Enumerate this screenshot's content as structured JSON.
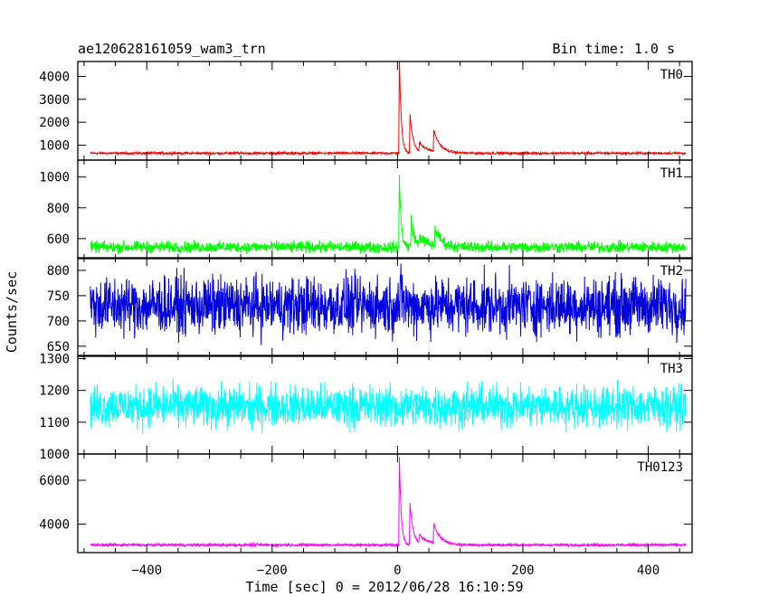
{
  "chart_data": {
    "type": "line",
    "title": "ae120628161059_wam3_trn",
    "bin_time_label": "Bin time: 1.0 s",
    "ylabel": "Counts/sec",
    "xlabel": "Time [sec] 0 = 2012/06/28 16:10:59",
    "xlim": [
      -510,
      470
    ],
    "x_ticks": [
      -400,
      -200,
      0,
      200,
      400
    ],
    "x_tick_labels": [
      "−400",
      "−200",
      "0",
      "200",
      "400"
    ],
    "panels": [
      {
        "name": "TH0",
        "color": "#ff0000",
        "ylim": [
          350,
          4650
        ],
        "y_ticks": [
          1000,
          2000,
          3000,
          4000
        ],
        "y_tick_labels": [
          "1000",
          "2000",
          "3000",
          "4000"
        ],
        "baseline": 650,
        "noise": 25,
        "x_start": -490,
        "x_end": 460,
        "peaks": [
          [
            3,
            4200,
            3
          ],
          [
            20,
            1700,
            5
          ],
          [
            58,
            900,
            10
          ],
          [
            35,
            400,
            15
          ]
        ]
      },
      {
        "name": "TH1",
        "color": "#00ff00",
        "ylim": [
          470,
          1110
        ],
        "y_ticks": [
          600,
          800,
          1000
        ],
        "y_tick_labels": [
          "600",
          "800",
          "1000"
        ],
        "baseline": 545,
        "noise": 18,
        "x_start": -490,
        "x_end": 460,
        "peaks": [
          [
            3,
            450,
            3
          ],
          [
            22,
            190,
            5
          ],
          [
            60,
            110,
            10
          ],
          [
            35,
            60,
            15
          ]
        ]
      },
      {
        "name": "TH2",
        "color": "#0000dd",
        "ylim": [
          630,
          825
        ],
        "y_ticks": [
          650,
          700,
          750,
          800
        ],
        "y_tick_labels": [
          "650",
          "700",
          "750",
          "800"
        ],
        "baseline": 730,
        "noise": 28,
        "x_start": -490,
        "x_end": 460,
        "peaks": [
          [
            5,
            25,
            5
          ]
        ]
      },
      {
        "name": "TH3",
        "color": "#00ffff",
        "ylim": [
          1000,
          1310
        ],
        "y_ticks": [
          1000,
          1100,
          1200,
          1300
        ],
        "y_tick_labels": [
          "1000",
          "1100",
          "1200",
          "1300"
        ],
        "baseline": 1150,
        "noise": 32,
        "x_start": -490,
        "x_end": 460,
        "peaks": []
      },
      {
        "name": "TH0123",
        "color": "#ff00ff",
        "ylim": [
          2700,
          7200
        ],
        "y_ticks": [
          4000,
          6000
        ],
        "y_tick_labels": [
          "4000",
          "6000"
        ],
        "baseline": 3050,
        "noise": 30,
        "x_start": -490,
        "x_end": 460,
        "peaks": [
          [
            3,
            4000,
            3
          ],
          [
            20,
            1900,
            5
          ],
          [
            58,
            900,
            10
          ],
          [
            35,
            400,
            15
          ]
        ]
      }
    ],
    "grid": false,
    "legend": "panel labels top-right"
  }
}
